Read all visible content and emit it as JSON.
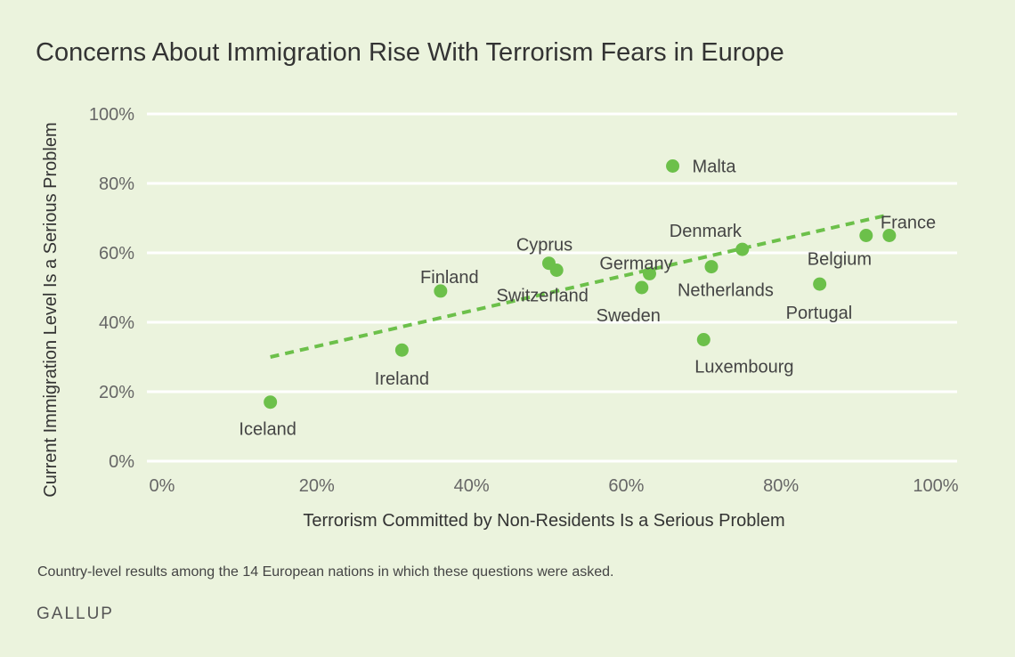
{
  "chart_data": {
    "type": "scatter",
    "title": "Concerns About Immigration Rise With Terrorism Fears in Europe",
    "xlabel": "Terrorism Committed by Non-Residents Is a Serious Problem",
    "ylabel": "Current Immigration Level Is a Serious Problem",
    "xlim": [
      0,
      100
    ],
    "ylim": [
      0,
      100
    ],
    "x_ticks": [
      0,
      20,
      40,
      60,
      80,
      100
    ],
    "y_ticks": [
      0,
      20,
      40,
      60,
      80,
      100
    ],
    "x_tick_labels": [
      "0%",
      "20%",
      "40%",
      "60%",
      "80%",
      "100%"
    ],
    "y_tick_labels": [
      "0%",
      "20%",
      "40%",
      "60%",
      "80%",
      "100%"
    ],
    "grid": true,
    "point_color": "#6cc04a",
    "trendline": {
      "x": [
        14,
        94
      ],
      "y": [
        30,
        71
      ],
      "color": "#6cc04a",
      "style": "dashed"
    },
    "points": [
      {
        "label": "Iceland",
        "x": 14,
        "y": 17
      },
      {
        "label": "Ireland",
        "x": 31,
        "y": 32
      },
      {
        "label": "Finland",
        "x": 36,
        "y": 49
      },
      {
        "label": "Cyprus",
        "x": 50,
        "y": 57
      },
      {
        "label": "Switzerland",
        "x": 51,
        "y": 55
      },
      {
        "label": "Sweden",
        "x": 62,
        "y": 50
      },
      {
        "label": "Germany",
        "x": 63,
        "y": 54
      },
      {
        "label": "Malta",
        "x": 66,
        "y": 85
      },
      {
        "label": "Luxembourg",
        "x": 70,
        "y": 35
      },
      {
        "label": "Netherlands",
        "x": 71,
        "y": 56
      },
      {
        "label": "Denmark",
        "x": 75,
        "y": 61
      },
      {
        "label": "Portugal",
        "x": 85,
        "y": 51
      },
      {
        "label": "Belgium",
        "x": 91,
        "y": 65
      },
      {
        "label": "France",
        "x": 94,
        "y": 65
      }
    ]
  },
  "footnote": "Country-level results among the 14 European nations in which these questions were asked.",
  "brand": "GALLUP"
}
